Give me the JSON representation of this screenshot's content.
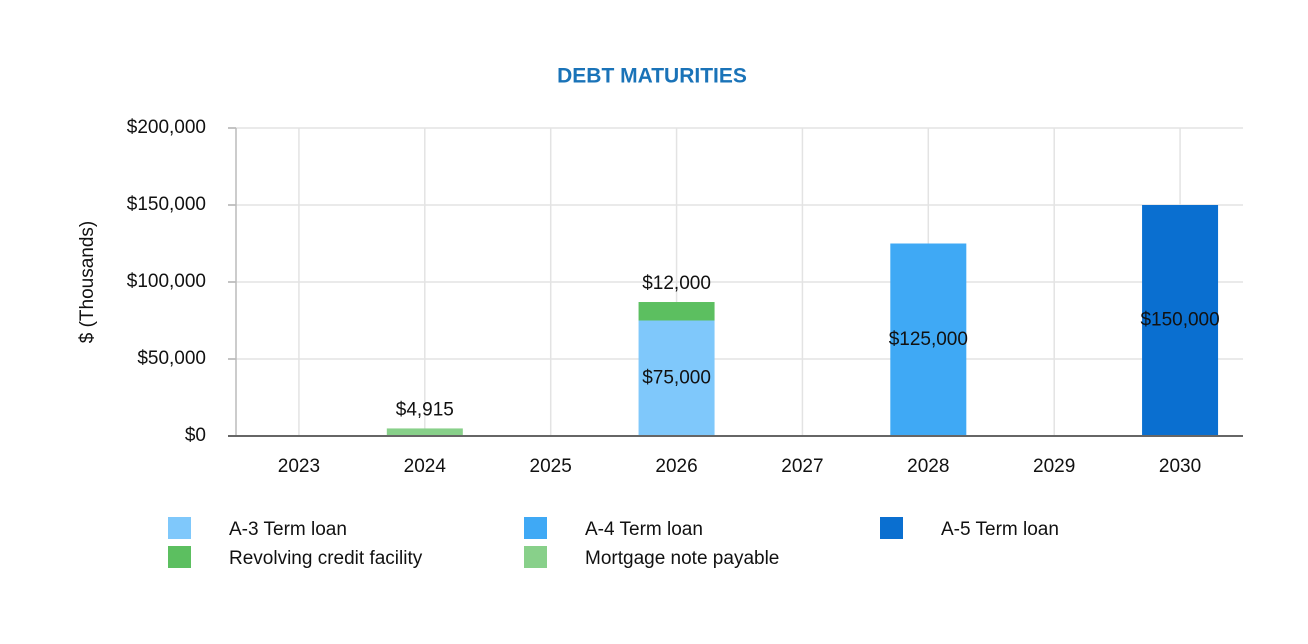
{
  "chart_data": {
    "type": "stacked-bar",
    "title": "DEBT MATURITIES",
    "y_label": "$ (Thousands)",
    "categories": [
      "2023",
      "2024",
      "2025",
      "2026",
      "2027",
      "2028",
      "2029",
      "2030"
    ],
    "series": [
      {
        "name": "A-3 Term loan",
        "color": "#7fc8fb",
        "values": [
          null,
          null,
          null,
          75000,
          null,
          null,
          null,
          null
        ],
        "value_labels": [
          null,
          null,
          null,
          "$75,000",
          null,
          null,
          null,
          null
        ]
      },
      {
        "name": "A-4 Term loan",
        "color": "#3fa9f5",
        "values": [
          null,
          null,
          null,
          null,
          null,
          125000,
          null,
          null
        ],
        "value_labels": [
          null,
          null,
          null,
          null,
          null,
          "$125,000",
          null,
          null
        ]
      },
      {
        "name": "A-5 Term loan",
        "color": "#0a6fd0",
        "values": [
          null,
          null,
          null,
          null,
          null,
          null,
          null,
          150000
        ],
        "value_labels": [
          null,
          null,
          null,
          null,
          null,
          null,
          null,
          "$150,000"
        ]
      },
      {
        "name": "Revolving credit facility",
        "color": "#5cbf60",
        "values": [
          null,
          null,
          null,
          12000,
          null,
          null,
          null,
          null
        ],
        "value_labels": [
          null,
          null,
          null,
          "$12,000",
          null,
          null,
          null,
          null
        ]
      },
      {
        "name": "Mortgage note payable",
        "color": "#88d08a",
        "values": [
          null,
          4915,
          null,
          null,
          null,
          null,
          null,
          null
        ],
        "value_labels": [
          null,
          "$4,915",
          null,
          null,
          null,
          null,
          null,
          null
        ]
      }
    ],
    "ylim": [
      0,
      200000
    ],
    "yticks": [
      {
        "value": 0,
        "label": "$0"
      },
      {
        "value": 50000,
        "label": "$50,000"
      },
      {
        "value": 100000,
        "label": "$100,000"
      },
      {
        "value": 150000,
        "label": "$150,000"
      },
      {
        "value": 200000,
        "label": "$200,000"
      }
    ],
    "grid": true,
    "legend": "bottom"
  }
}
